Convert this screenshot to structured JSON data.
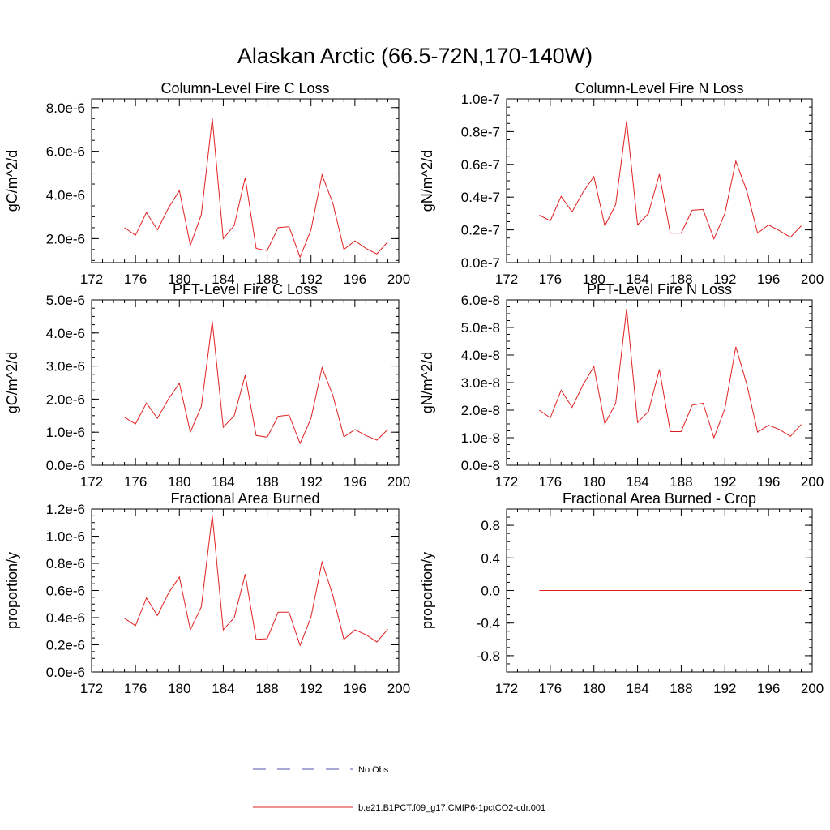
{
  "figure": {
    "title": "Alaskan Arctic (66.5-72N,170-140W)"
  },
  "legend": {
    "entries": [
      {
        "label": "No Obs",
        "color": "#5555aa",
        "style": "dashed"
      },
      {
        "label": "b.e21.B1PCT.f09_g17.CMIP6-1pctCO2-cdr.001",
        "color": "#e02020",
        "style": "solid"
      }
    ]
  },
  "chart_data": [
    {
      "type": "line",
      "title": "Column-Level Fire C Loss",
      "ylabel": "gC/m^2/d",
      "xlabel": "",
      "xlim": [
        172,
        200
      ],
      "xticks": [
        172,
        176,
        180,
        184,
        188,
        192,
        196,
        200
      ],
      "xtick_labels": [
        "172",
        "176",
        "180",
        "184",
        "188",
        "192",
        "196",
        "200"
      ],
      "ylim": [
        9e-07,
        8.4e-06
      ],
      "yticks": [
        2e-06,
        4e-06,
        6e-06,
        8e-06
      ],
      "ytick_labels": [
        "2.0e-6",
        "4.0e-6",
        "6.0e-6",
        "8.0e-6"
      ],
      "grid": false,
      "series": [
        {
          "color": "#e02020",
          "x": [
            175,
            176,
            177,
            178,
            179,
            180,
            181,
            182,
            183,
            184,
            185,
            186,
            187,
            188,
            189,
            190,
            191,
            192,
            193,
            194,
            195,
            196,
            197,
            198,
            199
          ],
          "y": [
            2.5e-06,
            2.15e-06,
            3.2e-06,
            2.4e-06,
            3.4e-06,
            4.2e-06,
            1.7e-06,
            3.1e-06,
            7.5e-06,
            2e-06,
            2.6e-06,
            4.8e-06,
            1.55e-06,
            1.45e-06,
            2.5e-06,
            2.55e-06,
            1.15e-06,
            2.4e-06,
            4.92e-06,
            3.6e-06,
            1.5e-06,
            1.9e-06,
            1.55e-06,
            1.3e-06,
            1.85e-06
          ]
        }
      ]
    },
    {
      "type": "line",
      "title": "Column-Level Fire N Loss",
      "ylabel": "gN/m^2/d",
      "xlabel": "",
      "xlim": [
        172,
        200
      ],
      "xticks": [
        172,
        176,
        180,
        184,
        188,
        192,
        196,
        200
      ],
      "xtick_labels": [
        "172",
        "176",
        "180",
        "184",
        "188",
        "192",
        "196",
        "200"
      ],
      "ylim": [
        0.0,
        1e-07
      ],
      "yticks": [
        0.0,
        2e-08,
        4e-08,
        6e-08,
        8e-08,
        1e-07
      ],
      "ytick_labels": [
        "0.0e-7",
        "0.2e-7",
        "0.4e-7",
        "0.6e-7",
        "0.8e-7",
        "1.0e-7"
      ],
      "grid": false,
      "series": [
        {
          "color": "#e02020",
          "x": [
            175,
            176,
            177,
            178,
            179,
            180,
            181,
            182,
            183,
            184,
            185,
            186,
            187,
            188,
            189,
            190,
            191,
            192,
            193,
            194,
            195,
            196,
            197,
            198,
            199
          ],
          "y": [
            2.9e-08,
            2.55e-08,
            4.05e-08,
            3.1e-08,
            4.3e-08,
            5.25e-08,
            2.25e-08,
            3.55e-08,
            8.65e-08,
            2.3e-08,
            3e-08,
            5.4e-08,
            1.8e-08,
            1.8e-08,
            3.2e-08,
            3.25e-08,
            1.45e-08,
            3e-08,
            6.2e-08,
            4.4e-08,
            1.8e-08,
            2.3e-08,
            1.95e-08,
            1.55e-08,
            2.25e-08
          ]
        }
      ]
    },
    {
      "type": "line",
      "title": "PFT-Level Fire C Loss",
      "ylabel": "gC/m^2/d",
      "xlabel": "",
      "xlim": [
        172,
        200
      ],
      "xticks": [
        172,
        176,
        180,
        184,
        188,
        192,
        196,
        200
      ],
      "xtick_labels": [
        "172",
        "176",
        "180",
        "184",
        "188",
        "192",
        "196",
        "200"
      ],
      "ylim": [
        0.0,
        5e-06
      ],
      "yticks": [
        0.0,
        1e-06,
        2e-06,
        3e-06,
        4e-06,
        5e-06
      ],
      "ytick_labels": [
        "0.0e-6",
        "1.0e-6",
        "2.0e-6",
        "3.0e-6",
        "4.0e-6",
        "5.0e-6"
      ],
      "grid": false,
      "series": [
        {
          "color": "#e02020",
          "x": [
            175,
            176,
            177,
            178,
            179,
            180,
            181,
            182,
            183,
            184,
            185,
            186,
            187,
            188,
            189,
            190,
            191,
            192,
            193,
            194,
            195,
            196,
            197,
            198,
            199
          ],
          "y": [
            1.45e-06,
            1.25e-06,
            1.88e-06,
            1.42e-06,
            2e-06,
            2.48e-06,
            1e-06,
            1.78e-06,
            4.35e-06,
            1.15e-06,
            1.5e-06,
            2.72e-06,
            9e-07,
            8.5e-07,
            1.48e-06,
            1.52e-06,
            6.6e-07,
            1.42e-06,
            2.95e-06,
            2.1e-06,
            8.6e-07,
            1.08e-06,
            9e-07,
            7.6e-07,
            1.08e-06
          ]
        }
      ]
    },
    {
      "type": "line",
      "title": "PFT-Level Fire N Loss",
      "ylabel": "gN/m^2/d",
      "xlabel": "",
      "xlim": [
        172,
        200
      ],
      "xticks": [
        172,
        176,
        180,
        184,
        188,
        192,
        196,
        200
      ],
      "xtick_labels": [
        "172",
        "176",
        "180",
        "184",
        "188",
        "192",
        "196",
        "200"
      ],
      "ylim": [
        0.0,
        6e-08
      ],
      "yticks": [
        0.0,
        1e-08,
        2e-08,
        3e-08,
        4e-08,
        5e-08,
        6e-08
      ],
      "ytick_labels": [
        "0.0e-8",
        "1.0e-8",
        "2.0e-8",
        "3.0e-8",
        "4.0e-8",
        "5.0e-8",
        "6.0e-8"
      ],
      "grid": false,
      "series": [
        {
          "color": "#e02020",
          "x": [
            175,
            176,
            177,
            178,
            179,
            180,
            181,
            182,
            183,
            184,
            185,
            186,
            187,
            188,
            189,
            190,
            191,
            192,
            193,
            194,
            195,
            196,
            197,
            198,
            199
          ],
          "y": [
            2e-08,
            1.72e-08,
            2.72e-08,
            2.1e-08,
            2.92e-08,
            3.58e-08,
            1.5e-08,
            2.25e-08,
            5.68e-08,
            1.55e-08,
            1.95e-08,
            3.48e-08,
            1.22e-08,
            1.22e-08,
            2.18e-08,
            2.25e-08,
            1e-08,
            2.05e-08,
            4.3e-08,
            2.95e-08,
            1.2e-08,
            1.45e-08,
            1.3e-08,
            1.05e-08,
            1.48e-08
          ]
        }
      ]
    },
    {
      "type": "line",
      "title": "Fractional Area Burned",
      "ylabel": "proportion/y",
      "xlabel": "",
      "xlim": [
        172,
        200
      ],
      "xticks": [
        172,
        176,
        180,
        184,
        188,
        192,
        196,
        200
      ],
      "xtick_labels": [
        "172",
        "176",
        "180",
        "184",
        "188",
        "192",
        "196",
        "200"
      ],
      "ylim": [
        0.0,
        1.2e-06
      ],
      "yticks": [
        0.0,
        2e-07,
        4e-07,
        6e-07,
        8e-07,
        1e-06,
        1.2e-06
      ],
      "ytick_labels": [
        "0.0e-6",
        "0.2e-6",
        "0.4e-6",
        "0.6e-6",
        "0.8e-6",
        "1.0e-6",
        "1.2e-6"
      ],
      "grid": false,
      "series": [
        {
          "color": "#e02020",
          "x": [
            175,
            176,
            177,
            178,
            179,
            180,
            181,
            182,
            183,
            184,
            185,
            186,
            187,
            188,
            189,
            190,
            191,
            192,
            193,
            194,
            195,
            196,
            197,
            198,
            199
          ],
          "y": [
            3.95e-07,
            3.4e-07,
            5.45e-07,
            4.15e-07,
            5.8e-07,
            7e-07,
            3.1e-07,
            4.8e-07,
            1.155e-06,
            3.1e-07,
            4e-07,
            7.2e-07,
            2.4e-07,
            2.45e-07,
            4.4e-07,
            4.4e-07,
            1.95e-07,
            4.05e-07,
            8.1e-07,
            5.6e-07,
            2.4e-07,
            3.1e-07,
            2.75e-07,
            2.2e-07,
            3.15e-07
          ]
        }
      ]
    },
    {
      "type": "line",
      "title": "Fractional Area Burned - Crop",
      "ylabel": "proportion/y",
      "xlabel": "",
      "xlim": [
        172,
        200
      ],
      "xticks": [
        172,
        176,
        180,
        184,
        188,
        192,
        196,
        200
      ],
      "xtick_labels": [
        "172",
        "176",
        "180",
        "184",
        "188",
        "192",
        "196",
        "200"
      ],
      "ylim": [
        -1.0,
        1.0
      ],
      "yticks": [
        -0.8,
        -0.4,
        0.0,
        0.4,
        0.8
      ],
      "ytick_labels": [
        "-0.8",
        "-0.4",
        "0.0",
        "0.4",
        "0.8"
      ],
      "grid": false,
      "series": [
        {
          "color": "#e02020",
          "x": [
            175,
            199
          ],
          "y": [
            0.0,
            0.0
          ]
        }
      ]
    }
  ]
}
